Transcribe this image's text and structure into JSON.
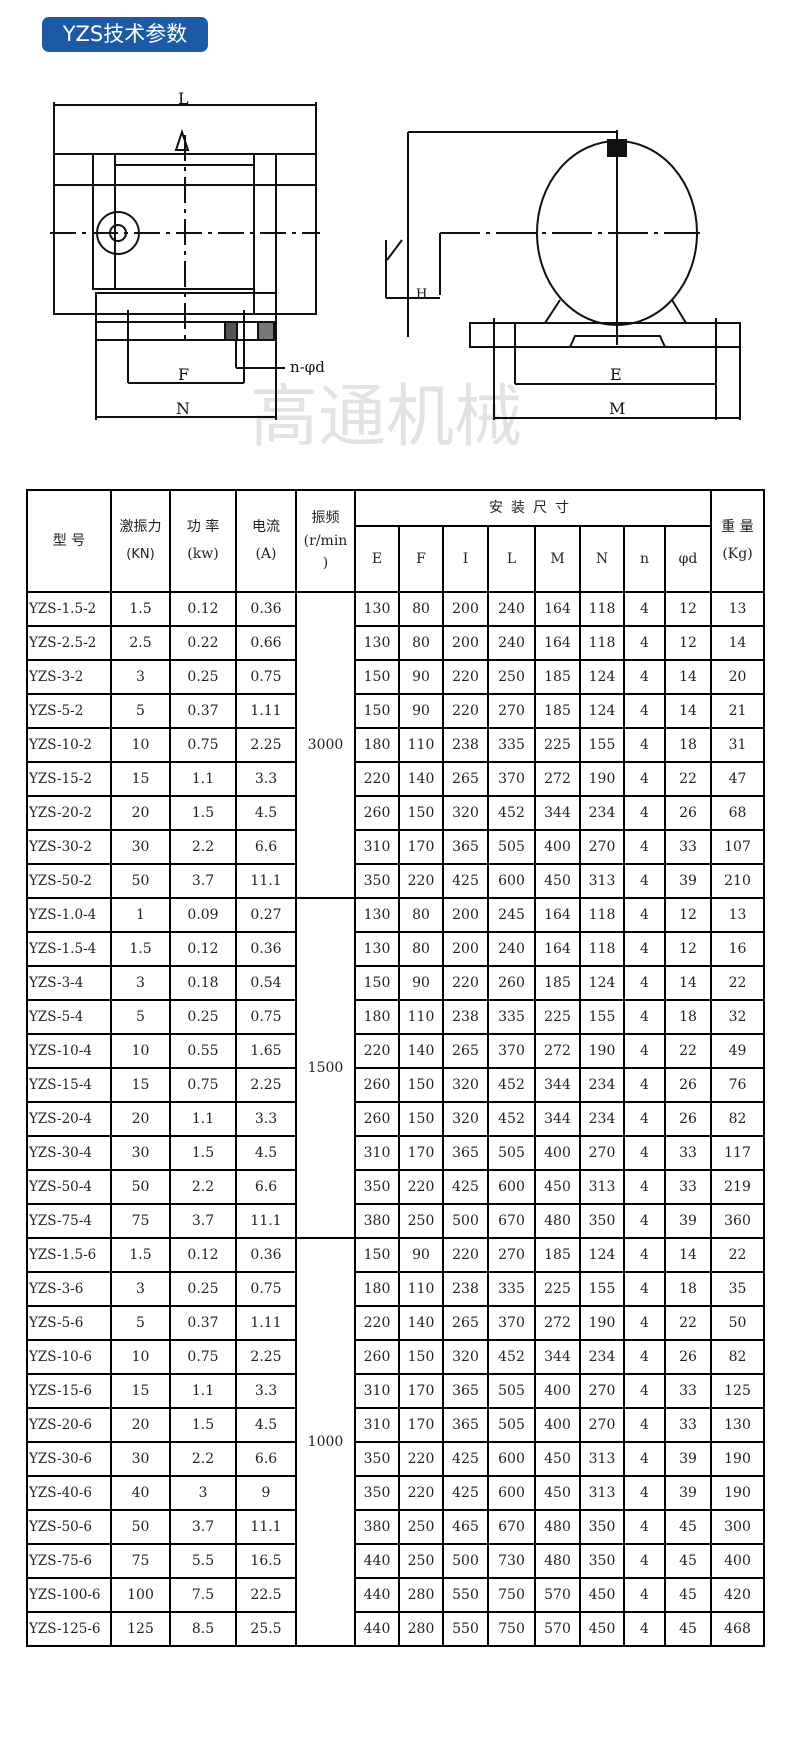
{
  "title": "YZS技术参数",
  "drawing": {
    "labels": {
      "L": "L",
      "F": "F",
      "N": "N",
      "E": "E",
      "M": "M",
      "H": "H",
      "nd": "n-φd"
    },
    "watermark": "高通机械"
  },
  "table": {
    "headers": {
      "model": "型 号",
      "force": "激振力",
      "force_unit": "(KN)",
      "power": "功 率",
      "power_unit": "(kw)",
      "current": "电流",
      "current_unit": "(A)",
      "freq": "振频",
      "freq_unit": "(r/min",
      "freq_unit2": ")",
      "install": "安装尺寸",
      "dims": [
        "E",
        "F",
        "I",
        "L",
        "M",
        "N",
        "n",
        "φd"
      ],
      "weight": "重 量",
      "weight_unit": "(Kg)"
    },
    "freq_groups": [
      "3000",
      "1500",
      "1000"
    ],
    "rows": [
      [
        "YZS-1.5-2",
        "1.5",
        "0.12",
        "0.36",
        "130",
        "80",
        "200",
        "240",
        "164",
        "118",
        "4",
        "12",
        "13"
      ],
      [
        "YZS-2.5-2",
        "2.5",
        "0.22",
        "0.66",
        "130",
        "80",
        "200",
        "240",
        "164",
        "118",
        "4",
        "12",
        "14"
      ],
      [
        "YZS-3-2",
        "3",
        "0.25",
        "0.75",
        "150",
        "90",
        "220",
        "250",
        "185",
        "124",
        "4",
        "14",
        "20"
      ],
      [
        "YZS-5-2",
        "5",
        "0.37",
        "1.11",
        "150",
        "90",
        "220",
        "270",
        "185",
        "124",
        "4",
        "14",
        "21"
      ],
      [
        "YZS-10-2",
        "10",
        "0.75",
        "2.25",
        "180",
        "110",
        "238",
        "335",
        "225",
        "155",
        "4",
        "18",
        "31"
      ],
      [
        "YZS-15-2",
        "15",
        "1.1",
        "3.3",
        "220",
        "140",
        "265",
        "370",
        "272",
        "190",
        "4",
        "22",
        "47"
      ],
      [
        "YZS-20-2",
        "20",
        "1.5",
        "4.5",
        "260",
        "150",
        "320",
        "452",
        "344",
        "234",
        "4",
        "26",
        "68"
      ],
      [
        "YZS-30-2",
        "30",
        "2.2",
        "6.6",
        "310",
        "170",
        "365",
        "505",
        "400",
        "270",
        "4",
        "33",
        "107"
      ],
      [
        "YZS-50-2",
        "50",
        "3.7",
        "11.1",
        "350",
        "220",
        "425",
        "600",
        "450",
        "313",
        "4",
        "39",
        "210"
      ],
      [
        "YZS-1.0-4",
        "1",
        "0.09",
        "0.27",
        "130",
        "80",
        "200",
        "245",
        "164",
        "118",
        "4",
        "12",
        "13"
      ],
      [
        "YZS-1.5-4",
        "1.5",
        "0.12",
        "0.36",
        "130",
        "80",
        "200",
        "240",
        "164",
        "118",
        "4",
        "12",
        "16"
      ],
      [
        "YZS-3-4",
        "3",
        "0.18",
        "0.54",
        "150",
        "90",
        "220",
        "260",
        "185",
        "124",
        "4",
        "14",
        "22"
      ],
      [
        "YZS-5-4",
        "5",
        "0.25",
        "0.75",
        "180",
        "110",
        "238",
        "335",
        "225",
        "155",
        "4",
        "18",
        "32"
      ],
      [
        "YZS-10-4",
        "10",
        "0.55",
        "1.65",
        "220",
        "140",
        "265",
        "370",
        "272",
        "190",
        "4",
        "22",
        "49"
      ],
      [
        "YZS-15-4",
        "15",
        "0.75",
        "2.25",
        "260",
        "150",
        "320",
        "452",
        "344",
        "234",
        "4",
        "26",
        "76"
      ],
      [
        "YZS-20-4",
        "20",
        "1.1",
        "3.3",
        "260",
        "150",
        "320",
        "452",
        "344",
        "234",
        "4",
        "26",
        "82"
      ],
      [
        "YZS-30-4",
        "30",
        "1.5",
        "4.5",
        "310",
        "170",
        "365",
        "505",
        "400",
        "270",
        "4",
        "33",
        "117"
      ],
      [
        "YZS-50-4",
        "50",
        "2.2",
        "6.6",
        "350",
        "220",
        "425",
        "600",
        "450",
        "313",
        "4",
        "33",
        "219"
      ],
      [
        "YZS-75-4",
        "75",
        "3.7",
        "11.1",
        "380",
        "250",
        "500",
        "670",
        "480",
        "350",
        "4",
        "39",
        "360"
      ],
      [
        "YZS-1.5-6",
        "1.5",
        "0.12",
        "0.36",
        "150",
        "90",
        "220",
        "270",
        "185",
        "124",
        "4",
        "14",
        "22"
      ],
      [
        "YZS-3-6",
        "3",
        "0.25",
        "0.75",
        "180",
        "110",
        "238",
        "335",
        "225",
        "155",
        "4",
        "18",
        "35"
      ],
      [
        "YZS-5-6",
        "5",
        "0.37",
        "1.11",
        "220",
        "140",
        "265",
        "370",
        "272",
        "190",
        "4",
        "22",
        "50"
      ],
      [
        "YZS-10-6",
        "10",
        "0.75",
        "2.25",
        "260",
        "150",
        "320",
        "452",
        "344",
        "234",
        "4",
        "26",
        "82"
      ],
      [
        "YZS-15-6",
        "15",
        "1.1",
        "3.3",
        "310",
        "170",
        "365",
        "505",
        "400",
        "270",
        "4",
        "33",
        "125"
      ],
      [
        "YZS-20-6",
        "20",
        "1.5",
        "4.5",
        "310",
        "170",
        "365",
        "505",
        "400",
        "270",
        "4",
        "33",
        "130"
      ],
      [
        "YZS-30-6",
        "30",
        "2.2",
        "6.6",
        "350",
        "220",
        "425",
        "600",
        "450",
        "313",
        "4",
        "39",
        "190"
      ],
      [
        "YZS-40-6",
        "40",
        "3",
        "9",
        "350",
        "220",
        "425",
        "600",
        "450",
        "313",
        "4",
        "39",
        "190"
      ],
      [
        "YZS-50-6",
        "50",
        "3.7",
        "11.1",
        "380",
        "250",
        "465",
        "670",
        "480",
        "350",
        "4",
        "45",
        "300"
      ],
      [
        "YZS-75-6",
        "75",
        "5.5",
        "16.5",
        "440",
        "250",
        "500",
        "730",
        "480",
        "350",
        "4",
        "45",
        "400"
      ],
      [
        "YZS-100-6",
        "100",
        "7.5",
        "22.5",
        "440",
        "280",
        "550",
        "750",
        "570",
        "450",
        "4",
        "45",
        "420"
      ],
      [
        "YZS-125-6",
        "125",
        "8.5",
        "25.5",
        "440",
        "280",
        "550",
        "750",
        "570",
        "450",
        "4",
        "45",
        "468"
      ]
    ]
  },
  "colors": {
    "badge": "#1c5aa6",
    "border": "#000000"
  }
}
